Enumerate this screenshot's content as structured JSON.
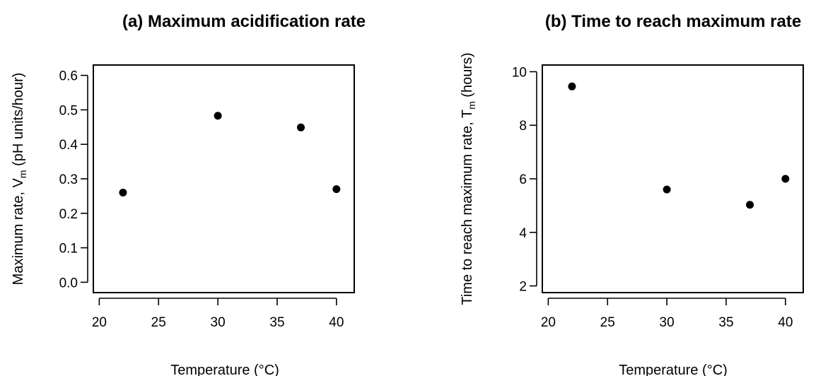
{
  "chart_data": [
    {
      "type": "scatter",
      "title": "(a) Maximum acidification rate",
      "xlabel": "Temperature (°C)",
      "ylabel_main": "Maximum rate, V",
      "ylabel_sub": "m",
      "ylabel_rest": " (pH units/hour)",
      "xlim": [
        19.5,
        41.5
      ],
      "ylim": [
        -0.03,
        0.63
      ],
      "xticks": [
        20,
        25,
        30,
        35,
        40
      ],
      "yticks": [
        0.0,
        0.1,
        0.2,
        0.3,
        0.4,
        0.5,
        0.6
      ],
      "xtick_labels": [
        "20",
        "25",
        "30",
        "35",
        "40"
      ],
      "ytick_labels": [
        "0.0",
        "0.1",
        "0.2",
        "0.3",
        "0.4",
        "0.5",
        "0.6"
      ],
      "points": [
        {
          "x": 22,
          "y": 0.26
        },
        {
          "x": 30,
          "y": 0.483
        },
        {
          "x": 37,
          "y": 0.449
        },
        {
          "x": 40,
          "y": 0.27
        }
      ]
    },
    {
      "type": "scatter",
      "title": "(b) Time to reach maximum rate",
      "xlabel": "Temperature (°C)",
      "ylabel_main": "Time to reach maximum rate, T",
      "ylabel_sub": "m",
      "ylabel_rest": " (hours)",
      "xlim": [
        19.5,
        41.5
      ],
      "ylim": [
        1.75,
        10.25
      ],
      "xticks": [
        20,
        25,
        30,
        35,
        40
      ],
      "yticks": [
        2,
        4,
        6,
        8,
        10
      ],
      "xtick_labels": [
        "20",
        "25",
        "30",
        "35",
        "40"
      ],
      "ytick_labels": [
        "2",
        "4",
        "6",
        "8",
        "10"
      ],
      "points": [
        {
          "x": 22,
          "y": 9.45
        },
        {
          "x": 30,
          "y": 5.6
        },
        {
          "x": 37,
          "y": 5.03
        },
        {
          "x": 40,
          "y": 6.0
        }
      ]
    }
  ]
}
